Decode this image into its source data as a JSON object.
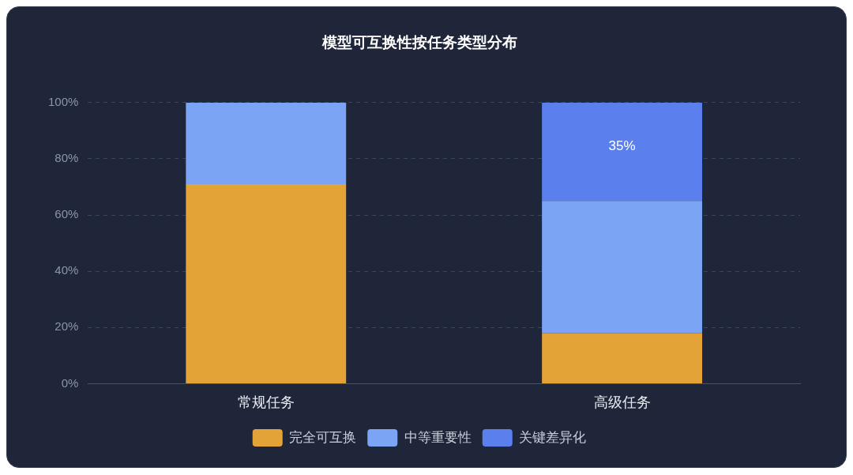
{
  "chart_data": {
    "type": "bar",
    "title": "模型可互换性按任务类型分布",
    "categories": [
      "常规任务",
      "高级任务"
    ],
    "stacked": true,
    "series": [
      {
        "name": "完全可互换",
        "color": "#e3a336",
        "values": [
          71,
          18
        ]
      },
      {
        "name": "中等重要性",
        "color": "#7ba4f5",
        "values": [
          29,
          47
        ]
      },
      {
        "name": "关键差异化",
        "color": "#5b80ee",
        "values": [
          0,
          35
        ],
        "value_labels": [
          null,
          "35%"
        ]
      }
    ],
    "ylim": [
      0,
      100
    ],
    "yticks": [
      {
        "value": 0,
        "label": "0%"
      },
      {
        "value": 20,
        "label": "20%"
      },
      {
        "value": 40,
        "label": "40%"
      },
      {
        "value": 60,
        "label": "60%"
      },
      {
        "value": 80,
        "label": "80%"
      },
      {
        "value": 100,
        "label": "100%"
      }
    ],
    "grid": "y",
    "legend": "bottom"
  }
}
